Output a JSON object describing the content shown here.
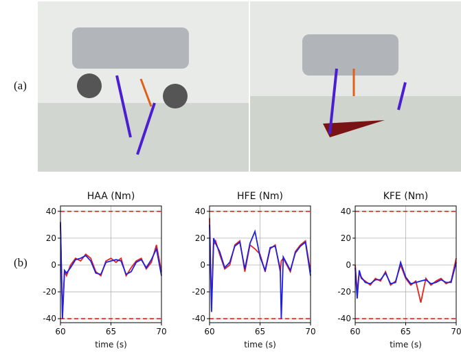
{
  "panel_labels": [
    "(a)",
    "(b)"
  ],
  "chart_data": [
    {
      "type": "line",
      "title": "HAA (Nm)",
      "xlabel": "time (s)",
      "xlim": [
        60,
        70
      ],
      "xticks": [
        60,
        65,
        70
      ],
      "ylim": [
        -43,
        44
      ],
      "yticks": [
        -40,
        -20,
        0,
        20,
        40
      ],
      "grid": true,
      "hlines": [
        40,
        -40
      ],
      "hline_color": "#e3231c",
      "x": [
        60,
        60.2,
        60.4,
        60.6,
        61,
        61.5,
        62,
        62.5,
        63,
        63.5,
        64,
        64.5,
        65,
        65.5,
        66,
        66.5,
        67,
        67.5,
        68,
        68.5,
        69,
        69.5,
        70
      ],
      "series": [
        {
          "color": "#e3231c",
          "values": [
            30,
            -38,
            -5,
            -8,
            0,
            5,
            3,
            8,
            5,
            -5,
            -8,
            3,
            5,
            2,
            5,
            -8,
            -2,
            3,
            5,
            -3,
            2,
            15,
            -5
          ]
        },
        {
          "color": "#1f1fe0",
          "values": [
            32,
            -40,
            -4,
            -6,
            -2,
            4,
            5,
            7,
            3,
            -6,
            -7,
            2,
            3,
            4,
            3,
            -7,
            -5,
            2,
            4,
            -2,
            4,
            12,
            -8
          ]
        }
      ]
    },
    {
      "type": "line",
      "title": "HFE (Nm)",
      "xlabel": "time (s)",
      "xlim": [
        60,
        70
      ],
      "xticks": [
        60,
        65,
        70
      ],
      "ylim": [
        -43,
        44
      ],
      "yticks": [
        -40,
        -20,
        0,
        20,
        40
      ],
      "grid": true,
      "hlines": [
        40,
        -40
      ],
      "hline_color": "#e3231c",
      "x": [
        60,
        60.2,
        60.4,
        60.6,
        61,
        61.5,
        62,
        62.5,
        63,
        63.5,
        64,
        64.5,
        65,
        65.5,
        66,
        66.5,
        67,
        67.1,
        67.3,
        68,
        68.5,
        69,
        69.5,
        70
      ],
      "series": [
        {
          "color": "#e3231c",
          "values": [
            35,
            -30,
            15,
            18,
            8,
            -3,
            0,
            15,
            18,
            -5,
            15,
            12,
            8,
            -5,
            12,
            15,
            -5,
            3,
            5,
            -5,
            10,
            15,
            18,
            -5
          ]
        },
        {
          "color": "#1f1fe0",
          "values": [
            30,
            -35,
            20,
            16,
            10,
            -2,
            2,
            14,
            17,
            -3,
            16,
            25,
            6,
            -4,
            13,
            14,
            -3,
            -40,
            6,
            -4,
            9,
            14,
            17,
            -8
          ]
        }
      ]
    },
    {
      "type": "line",
      "title": "KFE (Nm)",
      "xlabel": "time (s)",
      "xlim": [
        60,
        70
      ],
      "xticks": [
        60,
        65,
        70
      ],
      "ylim": [
        -43,
        44
      ],
      "yticks": [
        -40,
        -20,
        0,
        20,
        40
      ],
      "grid": true,
      "hlines": [
        40,
        -40
      ],
      "hline_color": "#e3231c",
      "x": [
        60,
        60.2,
        60.4,
        60.6,
        61,
        61.5,
        62,
        62.5,
        63,
        63.5,
        64,
        64.5,
        65,
        65.5,
        66,
        66.5,
        67,
        67.5,
        68,
        68.5,
        69,
        69.5,
        70
      ],
      "series": [
        {
          "color": "#e3231c",
          "values": [
            0,
            -20,
            -5,
            -10,
            -12,
            -15,
            -10,
            -12,
            -5,
            -15,
            -12,
            0,
            -10,
            -15,
            -12,
            -28,
            -10,
            -15,
            -12,
            -10,
            -14,
            -12,
            5
          ]
        },
        {
          "color": "#1f1fe0",
          "values": [
            -2,
            -25,
            -4,
            -9,
            -13,
            -14,
            -11,
            -11,
            -6,
            -14,
            -13,
            2,
            -9,
            -14,
            -13,
            -12,
            -11,
            -14,
            -13,
            -11,
            -13,
            -13,
            2
          ]
        }
      ]
    }
  ]
}
